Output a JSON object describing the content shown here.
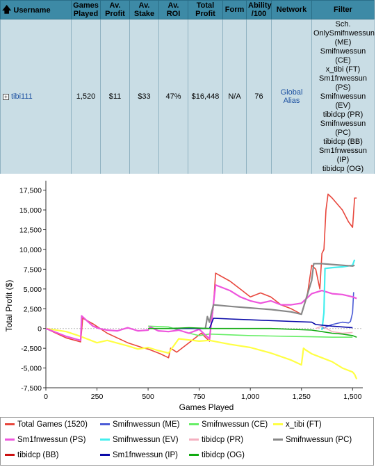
{
  "table": {
    "headers": [
      "Username",
      "Games Played",
      "Av. Profit",
      "Av. Stake",
      "Av. ROI",
      "Total Profit",
      "Form",
      "Ability /100",
      "Network",
      "Filter"
    ],
    "header_lines": [
      [
        "Username"
      ],
      [
        "Games",
        "Played"
      ],
      [
        "Av.",
        "Profit"
      ],
      [
        "Av.",
        "Stake"
      ],
      [
        "Av.",
        "ROI"
      ],
      [
        "Total",
        "Profit"
      ],
      [
        "Form"
      ],
      [
        "Ability",
        "/100"
      ],
      [
        "Network"
      ],
      [
        "Filter"
      ]
    ],
    "row": {
      "username": "tibi111",
      "games_played": "1,520",
      "av_profit": "$11",
      "av_stake": "$33",
      "av_roi": "47%",
      "total_profit": "$16,448",
      "form": "N/A",
      "ability": "76",
      "network": "Global Alias",
      "filter_lines": [
        "Sch.",
        "OnlySmifnwessun",
        "(ME)",
        "Smifnwessun",
        "(CE)",
        "x_tibi (FT)",
        "Sm1fnwessun",
        "(PS)",
        "Smifnwessun",
        "(EV)",
        "tibidcp (PR)",
        "Smifnwessun",
        "(PC)",
        "tibidcp (BB)",
        "Sm1fnwessun",
        "(IP)",
        "tibidcp (OG)"
      ]
    }
  },
  "chart_data": {
    "type": "line",
    "xlabel": "Games Played",
    "ylabel": "Total Profit ($)",
    "xlim": [
      0,
      1550
    ],
    "ylim": [
      -7500,
      18700
    ],
    "xticks": [
      0,
      250,
      500,
      750,
      1000,
      1250,
      1500
    ],
    "xtick_labels": [
      "0",
      "250",
      "500",
      "750",
      "1,000",
      "1,250",
      "1,500"
    ],
    "yticks": [
      -7500,
      -5000,
      -2500,
      0,
      2500,
      5000,
      7500,
      10000,
      12500,
      15000,
      17500
    ],
    "ytick_labels": [
      "-7,500",
      "-5,000",
      "-2,500",
      "0",
      "2,500",
      "5,000",
      "7,500",
      "10,000",
      "12,500",
      "15,000",
      "17,500"
    ],
    "grid": false,
    "legend_position": "bottom",
    "series": [
      {
        "name": "Total Games (1520)",
        "color": "#e8463c",
        "x": [
          0,
          50,
          100,
          170,
          180,
          230,
          300,
          400,
          470,
          500,
          560,
          600,
          610,
          640,
          700,
          760,
          800,
          820,
          830,
          900,
          950,
          1000,
          1050,
          1100,
          1150,
          1200,
          1250,
          1280,
          1300,
          1320,
          1340,
          1350,
          1360,
          1370,
          1380,
          1400,
          1450,
          1480,
          1500,
          1510,
          1520
        ],
        "y": [
          0,
          -600,
          -1200,
          -1700,
          1300,
          600,
          -600,
          -1800,
          -2400,
          -2600,
          -3200,
          -3700,
          -2500,
          -3000,
          -1800,
          -600,
          -1600,
          3000,
          7000,
          6000,
          5000,
          4000,
          4500,
          4000,
          3000,
          2500,
          1800,
          4500,
          8000,
          7500,
          5000,
          9500,
          10000,
          15000,
          17000,
          16500,
          15000,
          13500,
          12800,
          16500,
          16500
        ]
      },
      {
        "name": "Smifnwessun (ME)",
        "color": "#4b5bd6",
        "x": [
          1350,
          1400,
          1450,
          1480,
          1490,
          1500,
          1505
        ],
        "y": [
          0,
          500,
          800,
          700,
          900,
          2000,
          4600
        ]
      },
      {
        "name": "Smifnwessun (CE)",
        "color": "#66ee66",
        "x": [
          500,
          600,
          650,
          700,
          750,
          800,
          900,
          1000,
          1100,
          1200,
          1300,
          1400,
          1500
        ],
        "y": [
          300,
          200,
          -200,
          -600,
          -900,
          -700,
          -800,
          -900,
          -950,
          -1000,
          -1050,
          -1100,
          -1100
        ]
      },
      {
        "name": "x_tibi (FT)",
        "color": "#ffff44",
        "x": [
          0,
          100,
          170,
          200,
          250,
          300,
          400,
          450,
          500,
          550,
          600,
          650,
          750,
          800,
          900,
          1000,
          1100,
          1200,
          1250,
          1260,
          1270,
          1300,
          1350,
          1400,
          1450,
          1500,
          1510,
          1520
        ],
        "y": [
          0,
          -400,
          -1000,
          -1300,
          -1800,
          -1500,
          -2200,
          -2600,
          -2400,
          -2800,
          -3100,
          -1300,
          -1600,
          -1500,
          -2000,
          -2400,
          -3100,
          -4000,
          -4600,
          -2500,
          -2700,
          -3200,
          -3700,
          -4200,
          -5000,
          -5500,
          -5800,
          -6400
        ]
      },
      {
        "name": "Sm1fnwessun (PS)",
        "color": "#ee55dd",
        "x": [
          0,
          50,
          100,
          170,
          175,
          200,
          230,
          260,
          300,
          350,
          400,
          450,
          500,
          510,
          550,
          600,
          650,
          700,
          750,
          800,
          830,
          850,
          900,
          950,
          1000,
          1050,
          1100,
          1150,
          1200,
          1250,
          1300,
          1350,
          1400,
          1450,
          1500,
          1520
        ],
        "y": [
          0,
          -500,
          -1000,
          -1500,
          1600,
          1000,
          300,
          0,
          -200,
          -300,
          100,
          -300,
          -200,
          200,
          -300,
          -400,
          -200,
          -600,
          -100,
          -1300,
          5500,
          5300,
          4800,
          4000,
          3500,
          3200,
          3500,
          3000,
          3000,
          3200,
          4400,
          4800,
          4400,
          4300,
          4000,
          3800
        ]
      },
      {
        "name": "Smifnwessun (EV)",
        "color": "#44eeee",
        "x": [
          1350,
          1360,
          1365,
          1400,
          1450,
          1500,
          1510
        ],
        "y": [
          -200,
          2000,
          7600,
          7700,
          7800,
          8000,
          8700
        ]
      },
      {
        "name": "tibidcp (PR)",
        "color": "#f4b0c0",
        "x": [
          1320,
          1350,
          1400,
          1450,
          1500
        ],
        "y": [
          0,
          300,
          -400,
          -600,
          -500
        ]
      },
      {
        "name": "Smifnwessun (PC)",
        "color": "#888888",
        "x": [
          780,
          790,
          800,
          810,
          820,
          900,
          1000,
          1100,
          1200,
          1250,
          1300,
          1310,
          1320,
          1350,
          1400,
          1450,
          1500,
          1510
        ],
        "y": [
          0,
          1500,
          800,
          2000,
          3000,
          2800,
          2600,
          2400,
          2100,
          1800,
          6100,
          8200,
          8200,
          8200,
          8100,
          8000,
          7900,
          8000
        ]
      },
      {
        "name": "tibidcp (BB)",
        "color": "#cc1111",
        "x": [],
        "y": []
      },
      {
        "name": "Sm1fnwessun (IP)",
        "color": "#0a0aa8",
        "x": [
          600,
          700,
          800,
          820,
          900,
          1000,
          1100,
          1200,
          1300,
          1320,
          1400,
          1450,
          1500
        ],
        "y": [
          0,
          0,
          0,
          1300,
          1200,
          1100,
          1000,
          900,
          800,
          500,
          300,
          200,
          100
        ]
      },
      {
        "name": "tibidcp (OG)",
        "color": "#11aa11",
        "x": [
          500,
          600,
          700,
          800,
          900,
          1000,
          1100,
          1200,
          1300,
          1350,
          1400,
          1450,
          1500,
          1520
        ],
        "y": [
          0,
          0,
          100,
          0,
          0,
          0,
          0,
          -100,
          -200,
          -400,
          -600,
          -700,
          -900,
          -1100
        ]
      }
    ]
  }
}
